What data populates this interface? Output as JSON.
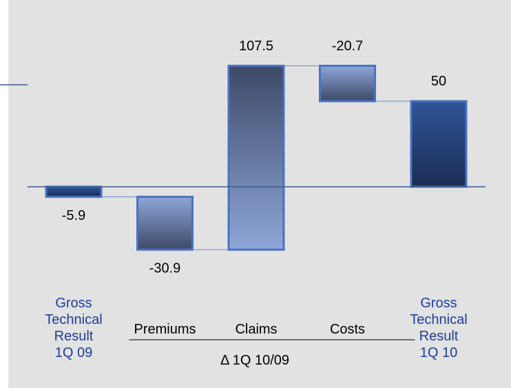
{
  "chart_data": {
    "type": "waterfall",
    "categories": [
      "Gross\nTechnical\nResult\n1Q 09",
      "Premiums",
      "Claims",
      "Costs",
      "Gross\nTechnical\nResult\n1Q 10"
    ],
    "values": [
      -5.9,
      -30.9,
      107.5,
      -20.7,
      50
    ],
    "is_total": [
      true,
      false,
      false,
      false,
      true
    ],
    "group_label": "Δ 1Q 10/09",
    "total_color": "#2f5597",
    "delta_color": "#8ea6d8",
    "border_color": "#4a72c4",
    "total_label_color": "#1f3d99",
    "ylim": [
      -52,
      85
    ]
  }
}
